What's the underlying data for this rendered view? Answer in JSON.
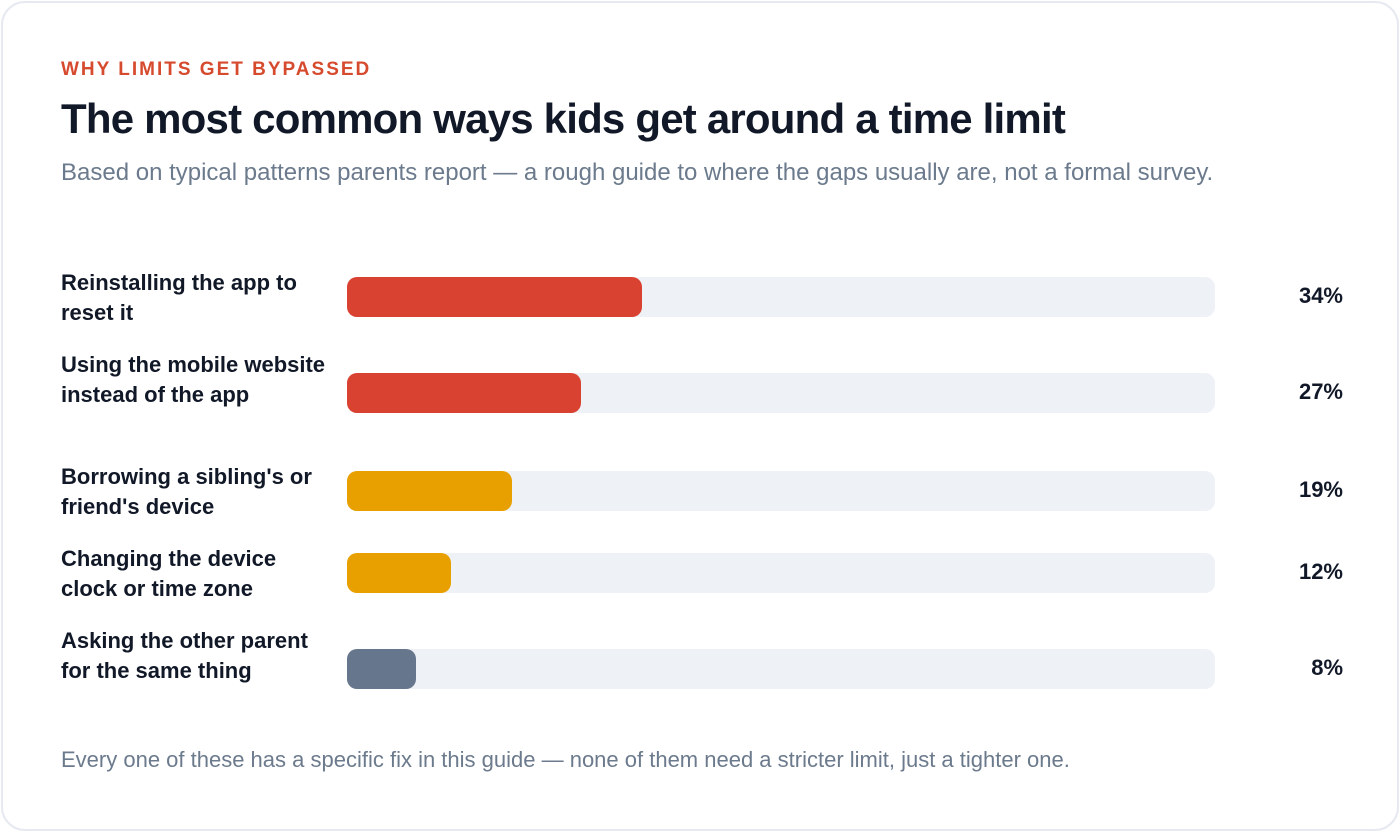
{
  "header": {
    "eyebrow": "WHY LIMITS GET BYPASSED",
    "title": "The most common ways kids get around a time limit",
    "subtitle": "Based on typical patterns parents report — a rough guide to where the gaps usually are, not a formal survey."
  },
  "footer": {
    "note": "Every one of these has a specific fix in this guide — none of them need a stricter limit, just a tighter one."
  },
  "colors": {
    "accent": "#d64a2e",
    "track": "#eef1f5",
    "red": "#d94130",
    "amber": "#e8a000",
    "slate": "#66768c"
  },
  "chart_data": {
    "type": "bar",
    "orientation": "horizontal",
    "title": "",
    "xlabel": "",
    "ylabel": "",
    "xlim": [
      0,
      100
    ],
    "grid": false,
    "legend": "none",
    "categories": [
      "Reinstalling the app to reset it",
      "Using the mobile website instead of the app",
      "Borrowing a sibling's or friend's device",
      "Changing the device clock or time zone",
      "Asking the other parent for the same thing"
    ],
    "values": [
      34,
      27,
      19,
      12,
      8
    ],
    "value_labels": [
      "34%",
      "27%",
      "19%",
      "12%",
      "8%"
    ],
    "bar_colors": [
      "#d94130",
      "#d94130",
      "#e8a000",
      "#e8a000",
      "#66768c"
    ]
  }
}
